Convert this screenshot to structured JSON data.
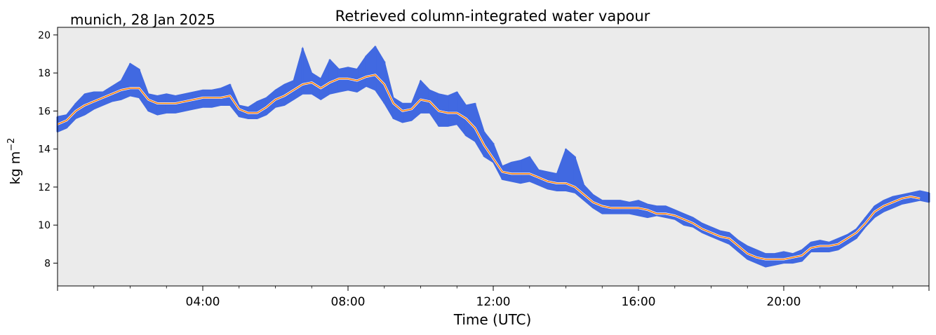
{
  "chart_data": {
    "type": "line",
    "title": "Retrieved column-integrated water vapour",
    "subtitle": "munich, 28 Jan 2025",
    "xlabel": "Time (UTC)",
    "ylabel": "kg m",
    "ylabel_superscript": "−2",
    "xlim": [
      0,
      24
    ],
    "ylim": [
      6.8,
      20.4
    ],
    "grid": false,
    "x_ticks": [
      {
        "value": 4,
        "label": "04:00"
      },
      {
        "value": 8,
        "label": "08:00"
      },
      {
        "value": 12,
        "label": "12:00"
      },
      {
        "value": 16,
        "label": "16:00"
      },
      {
        "value": 20,
        "label": "20:00"
      }
    ],
    "y_ticks": [
      {
        "value": 8,
        "label": "8"
      },
      {
        "value": 10,
        "label": "10"
      },
      {
        "value": 12,
        "label": "12"
      },
      {
        "value": 14,
        "label": "14"
      },
      {
        "value": 16,
        "label": "16"
      },
      {
        "value": 18,
        "label": "18"
      },
      {
        "value": 20,
        "label": "20"
      }
    ],
    "series": [
      {
        "kind": "scatter-band",
        "color": "#4169e1",
        "x": [
          0.0,
          0.25,
          0.5,
          0.75,
          1.0,
          1.25,
          1.5,
          1.75,
          2.0,
          2.25,
          2.5,
          2.75,
          3.0,
          3.25,
          3.5,
          3.75,
          4.0,
          4.25,
          4.5,
          4.75,
          5.0,
          5.25,
          5.5,
          5.75,
          6.0,
          6.25,
          6.5,
          6.75,
          7.0,
          7.25,
          7.5,
          7.75,
          8.0,
          8.25,
          8.5,
          8.75,
          9.0,
          9.25,
          9.5,
          9.75,
          10.0,
          10.25,
          10.5,
          10.75,
          11.0,
          11.25,
          11.5,
          11.75,
          12.0,
          12.25,
          12.5,
          12.75,
          13.0,
          13.25,
          13.5,
          13.75,
          14.0,
          14.25,
          14.5,
          14.75,
          15.0,
          15.25,
          15.5,
          15.75,
          16.0,
          16.25,
          16.5,
          16.75,
          17.0,
          17.25,
          17.5,
          17.75,
          18.0,
          18.25,
          18.5,
          18.75,
          19.0,
          19.25,
          19.5,
          19.75,
          20.0,
          20.25,
          20.5,
          20.75,
          21.0,
          21.25,
          21.5,
          21.75,
          22.0,
          22.25,
          22.5,
          22.75,
          23.0,
          23.25,
          23.5,
          23.75,
          24.0
        ],
        "low": [
          14.9,
          15.1,
          15.6,
          15.8,
          16.1,
          16.3,
          16.5,
          16.6,
          16.8,
          16.7,
          16.0,
          15.8,
          15.9,
          15.9,
          16.0,
          16.1,
          16.2,
          16.2,
          16.3,
          16.3,
          15.7,
          15.6,
          15.6,
          15.8,
          16.2,
          16.3,
          16.6,
          16.9,
          16.9,
          16.6,
          16.9,
          17.0,
          17.1,
          17.0,
          17.3,
          17.1,
          16.4,
          15.6,
          15.4,
          15.5,
          15.9,
          15.9,
          15.2,
          15.2,
          15.3,
          14.7,
          14.4,
          13.6,
          13.3,
          12.4,
          12.3,
          12.2,
          12.3,
          12.1,
          11.9,
          11.8,
          11.8,
          11.7,
          11.3,
          10.9,
          10.6,
          10.6,
          10.6,
          10.6,
          10.5,
          10.4,
          10.5,
          10.4,
          10.3,
          10.0,
          9.9,
          9.6,
          9.4,
          9.2,
          9.0,
          8.6,
          8.2,
          8.0,
          7.8,
          7.9,
          8.0,
          8.0,
          8.1,
          8.6,
          8.6,
          8.6,
          8.7,
          9.0,
          9.3,
          9.9,
          10.4,
          10.7,
          10.9,
          11.1,
          11.2,
          11.3,
          11.2
        ],
        "high": [
          15.7,
          15.8,
          16.4,
          16.9,
          17.0,
          17.0,
          17.3,
          17.6,
          18.5,
          18.2,
          16.9,
          16.8,
          16.9,
          16.8,
          16.9,
          17.0,
          17.1,
          17.1,
          17.2,
          17.4,
          16.3,
          16.2,
          16.5,
          16.7,
          17.1,
          17.4,
          17.6,
          19.3,
          18.0,
          17.7,
          18.7,
          18.2,
          18.3,
          18.2,
          18.9,
          19.4,
          18.6,
          16.7,
          16.4,
          16.4,
          17.6,
          17.1,
          16.9,
          16.8,
          17.0,
          16.3,
          16.4,
          14.9,
          14.3,
          13.1,
          13.3,
          13.4,
          13.6,
          12.9,
          12.8,
          12.7,
          14.0,
          13.6,
          12.1,
          11.6,
          11.3,
          11.3,
          11.3,
          11.2,
          11.3,
          11.1,
          11.0,
          11.0,
          10.8,
          10.6,
          10.4,
          10.1,
          9.9,
          9.7,
          9.6,
          9.2,
          8.9,
          8.7,
          8.5,
          8.5,
          8.6,
          8.5,
          8.7,
          9.1,
          9.2,
          9.1,
          9.3,
          9.5,
          9.8,
          10.4,
          11.0,
          11.3,
          11.5,
          11.6,
          11.7,
          11.8,
          11.7
        ]
      },
      {
        "kind": "line",
        "color": "#ff7f0e",
        "x": [
          0.0,
          0.25,
          0.5,
          0.75,
          1.0,
          1.25,
          1.5,
          1.75,
          2.0,
          2.25,
          2.5,
          2.75,
          3.0,
          3.25,
          3.5,
          3.75,
          4.0,
          4.25,
          4.5,
          4.75,
          5.0,
          5.25,
          5.5,
          5.75,
          6.0,
          6.25,
          6.5,
          6.75,
          7.0,
          7.25,
          7.5,
          7.75,
          8.0,
          8.25,
          8.5,
          8.75,
          9.0,
          9.25,
          9.5,
          9.75,
          10.0,
          10.25,
          10.5,
          10.75,
          11.0,
          11.25,
          11.5,
          11.75,
          12.0,
          12.25,
          12.5,
          12.75,
          13.0,
          13.25,
          13.5,
          13.75,
          14.0,
          14.25,
          14.5,
          14.75,
          15.0,
          15.25,
          15.5,
          15.75,
          16.0,
          16.25,
          16.5,
          16.75,
          17.0,
          17.25,
          17.5,
          17.75,
          18.0,
          18.25,
          18.5,
          18.75,
          19.0,
          19.25,
          19.5,
          19.75,
          20.0,
          20.25,
          20.5,
          20.75,
          21.0,
          21.25,
          21.5,
          21.75,
          22.0,
          22.25,
          22.5,
          22.75,
          23.0,
          23.25,
          23.5,
          23.75
        ],
        "y": [
          15.3,
          15.5,
          16.0,
          16.3,
          16.5,
          16.7,
          16.9,
          17.1,
          17.2,
          17.2,
          16.6,
          16.4,
          16.4,
          16.4,
          16.5,
          16.6,
          16.7,
          16.7,
          16.7,
          16.8,
          16.1,
          15.9,
          15.9,
          16.2,
          16.6,
          16.8,
          17.1,
          17.4,
          17.5,
          17.2,
          17.5,
          17.7,
          17.7,
          17.6,
          17.8,
          17.9,
          17.4,
          16.4,
          16.0,
          16.1,
          16.6,
          16.5,
          16.0,
          15.9,
          15.9,
          15.6,
          15.1,
          14.2,
          13.5,
          12.8,
          12.7,
          12.7,
          12.7,
          12.5,
          12.3,
          12.2,
          12.2,
          12.0,
          11.6,
          11.2,
          11.0,
          10.9,
          10.9,
          10.9,
          10.9,
          10.8,
          10.6,
          10.6,
          10.5,
          10.3,
          10.1,
          9.8,
          9.6,
          9.4,
          9.3,
          8.9,
          8.5,
          8.3,
          8.2,
          8.2,
          8.2,
          8.3,
          8.4,
          8.8,
          8.9,
          8.9,
          9.0,
          9.3,
          9.6,
          10.1,
          10.7,
          11.0,
          11.2,
          11.4,
          11.5,
          11.4
        ]
      }
    ]
  }
}
